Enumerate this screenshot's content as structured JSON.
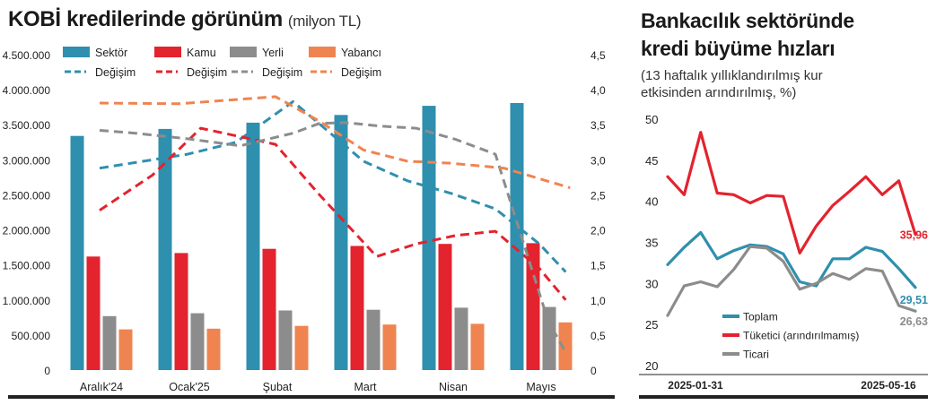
{
  "left": {
    "title": "KOBİ kredilerinde görünüm",
    "unit": "(milyon TL)"
  },
  "right": {
    "title_line1": "Bankacılık sektöründe",
    "title_line2": "kredi büyüme hızları",
    "subtitle_line1": "(13 haftalık yıllıklandırılmış kur",
    "subtitle_line2": "etkisinden arındırılmış, %)"
  },
  "chart_data": [
    {
      "type": "bar",
      "categories": [
        "Aralık'24",
        "Ocak'25",
        "Şubat",
        "Mart",
        "Nisan",
        "Mayıs"
      ],
      "left_axis": {
        "ticks": [
          "4.500.000",
          "4.000.000",
          "3.500.000",
          "3.000.000",
          "2.500.000",
          "2.000.000",
          "1.500.000",
          "1.000.000",
          "500.000",
          "0"
        ],
        "ylim": [
          0,
          4500000
        ]
      },
      "right_axis": {
        "ticks": [
          "4,5",
          "4,0",
          "3,5",
          "3,0",
          "2,5",
          "2,0",
          "1,5",
          "1,0",
          "0,5",
          "0"
        ],
        "ylim": [
          0,
          4.5
        ]
      },
      "legend_bars": [
        "Sektör",
        "Kamu",
        "Yerli",
        "Yabancı"
      ],
      "legend_lines": [
        "Değişim",
        "Değişim",
        "Değişim",
        "Değişim"
      ],
      "colors": {
        "sektor": "#2f8fae",
        "kamu": "#e3232e",
        "yerli": "#8c8c8c",
        "yabanci": "#f08450"
      },
      "bar_series": [
        {
          "name": "Sektör",
          "values": [
            3340000,
            3440000,
            3530000,
            3640000,
            3770000,
            3810000
          ]
        },
        {
          "name": "Kamu",
          "values": [
            1620000,
            1670000,
            1730000,
            1770000,
            1800000,
            1810000
          ]
        },
        {
          "name": "Yerli",
          "values": [
            770000,
            810000,
            850000,
            860000,
            890000,
            900000
          ]
        },
        {
          "name": "Yabancı",
          "values": [
            580000,
            590000,
            630000,
            650000,
            660000,
            680000
          ]
        }
      ],
      "line_series": [
        {
          "name": "Değişim",
          "of": "Sektör",
          "x": [
            0,
            1,
            1.55,
            2.2,
            3,
            3.5,
            4,
            4.5,
            5,
            5.3
          ],
          "values": [
            2.88,
            3.08,
            3.25,
            3.83,
            2.98,
            2.7,
            2.52,
            2.3,
            1.8,
            1.4
          ]
        },
        {
          "name": "Değişim",
          "of": "Kamu",
          "x": [
            0,
            0.6,
            1.15,
            2,
            2.5,
            3.15,
            3.6,
            4.05,
            4.5,
            5,
            5.3
          ],
          "values": [
            2.28,
            2.78,
            3.45,
            3.22,
            2.5,
            1.62,
            1.8,
            1.92,
            1.98,
            1.45,
            1.0
          ]
        },
        {
          "name": "Değişim",
          "of": "Yerli",
          "x": [
            0,
            0.4,
            1,
            1.6,
            2.2,
            2.5,
            2.8,
            3.2,
            3.6,
            4.05,
            4.5,
            5.1,
            5.3
          ],
          "values": [
            3.42,
            3.38,
            3.3,
            3.2,
            3.38,
            3.52,
            3.53,
            3.48,
            3.45,
            3.29,
            3.08,
            0.7,
            0.25
          ]
        },
        {
          "name": "Değişim",
          "of": "Yabancı",
          "x": [
            0,
            0.9,
            2,
            2.5,
            3,
            3.5,
            4,
            4.6,
            5.35
          ],
          "values": [
            3.81,
            3.8,
            3.9,
            3.55,
            3.14,
            2.98,
            2.95,
            2.88,
            2.6
          ]
        }
      ]
    },
    {
      "type": "line",
      "x_tick_labels": [
        "2025-01-31",
        "2025-05-16"
      ],
      "y_ticks": [
        "50",
        "45",
        "40",
        "35",
        "30",
        "25",
        "20"
      ],
      "ylim": [
        20,
        50
      ],
      "colors": {
        "toplam": "#2f8fae",
        "tuketici": "#e3232e",
        "ticari": "#8c8c8c"
      },
      "series": [
        {
          "name": "Toplam",
          "values": [
            32.3,
            34.4,
            36.2,
            33.0,
            34.0,
            34.7,
            34.5,
            33.6,
            30.2,
            29.7,
            33.0,
            33.0,
            34.4,
            33.9,
            31.8,
            29.51
          ],
          "end_label": "29,51"
        },
        {
          "name": "Tüketici (arındırılmamış)",
          "values": [
            43.0,
            40.8,
            48.4,
            41.0,
            40.8,
            39.8,
            40.7,
            40.6,
            33.7,
            37.0,
            39.5,
            41.2,
            43.0,
            40.8,
            42.5,
            35.96
          ],
          "end_label": "35,96"
        },
        {
          "name": "Ticari",
          "values": [
            26.1,
            29.7,
            30.2,
            29.6,
            31.7,
            34.5,
            34.3,
            32.7,
            29.3,
            30.0,
            31.2,
            30.5,
            31.8,
            31.5,
            27.3,
            26.63
          ],
          "end_label": "26,63"
        }
      ]
    }
  ]
}
